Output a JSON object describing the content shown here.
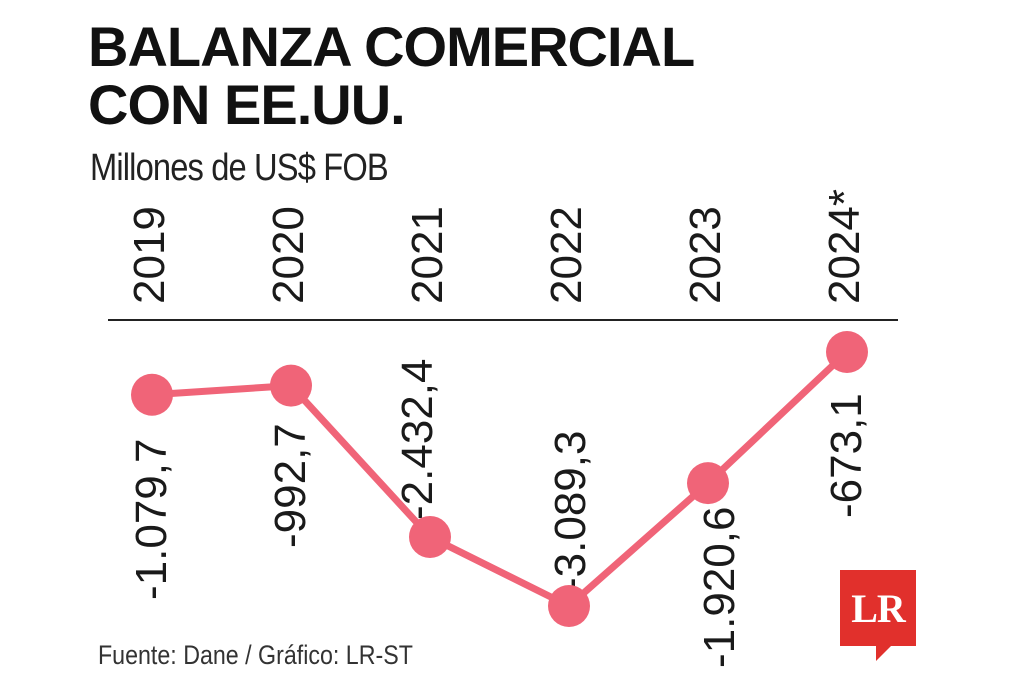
{
  "header": {
    "title_line1": "BALANZA COMERCIAL",
    "title_line2": "CON EE.UU.",
    "subtitle": "Millones de US$ FOB"
  },
  "footer": {
    "source": "Fuente: Dane / Gráfico: LR-ST"
  },
  "logo": {
    "text": "LR",
    "color": "#e1302c"
  },
  "chart_data": {
    "type": "line",
    "title": "BALANZA COMERCIAL CON EE.UU.",
    "subtitle": "Millones de US$ FOB",
    "categories": [
      "2019",
      "2020",
      "2021",
      "2022",
      "2023",
      "2024*"
    ],
    "series": [
      {
        "values": [
          -1079.7,
          -992.7,
          -2432.4,
          -3089.3,
          -1920.6,
          -673.1
        ],
        "labels": [
          "-1.079,7",
          "-992,7",
          "-2.432,4",
          "-3.089,3",
          "-1.920,6",
          "-673,1"
        ],
        "color": "#f06478"
      }
    ],
    "axis_position": "top",
    "grid": false,
    "legend": "none"
  }
}
